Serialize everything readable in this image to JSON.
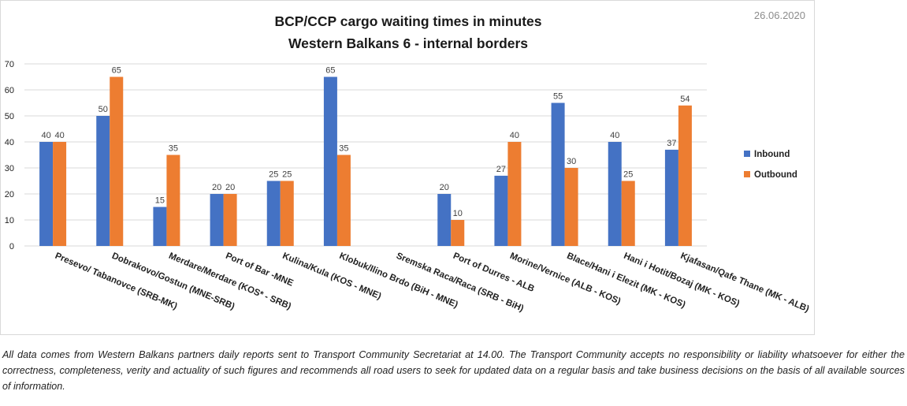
{
  "date": "26.06.2020",
  "disclaimer": "All data comes from Western Balkans partners daily reports sent to Transport Community Secretariat at 14.00. The Transport Community accepts no responsibility or liability whatsoever for either the correctness, completeness, verity and actuality of such figures and recommends all road users to seek for updated data on a regular basis and take business decisions on the basis of all available sources of information.",
  "colors": {
    "inbound": "#4472C4",
    "outbound": "#ED7D31",
    "grid": "#d9d9d9"
  },
  "chart_data": {
    "type": "bar",
    "title": [
      "BCP/CCP cargo waiting times in minutes",
      "Western Balkans 6 - internal borders"
    ],
    "xlabel": "",
    "ylabel": "",
    "ylim": [
      0,
      70
    ],
    "yticks": [
      0,
      10,
      20,
      30,
      40,
      50,
      60,
      70
    ],
    "grid": true,
    "legend_position": "right",
    "categories": [
      "Presevo/ Tabanovce (SRB-MK)",
      "Dobrakovo/Gostun (MNE-SRB)",
      "Merdare/Merdare (KOS* - SRB)",
      "Port of Bar -MNE",
      "Kulina/Kula (KOS - MNE)",
      "Klobuk/Ilino Brdo (BiH - MNE)",
      "Sremska Raca/Raca (SRB - BiH)",
      "Port of Durres - ALB",
      "Morine/Vernice (ALB - KOS)",
      "Blace/Hani i Elezit (MK - KOS)",
      "Hani i Hotit/Bozaj (MK - KOS)",
      "Kjafasan/Qafe Thane (MK - ALB)"
    ],
    "series": [
      {
        "name": "Inbound",
        "color": "#4472C4",
        "values": [
          40,
          50,
          15,
          20,
          25,
          65,
          null,
          20,
          27,
          55,
          40,
          37
        ]
      },
      {
        "name": "Outbound",
        "color": "#ED7D31",
        "values": [
          40,
          65,
          35,
          20,
          25,
          35,
          null,
          10,
          40,
          30,
          25,
          54
        ]
      }
    ]
  }
}
